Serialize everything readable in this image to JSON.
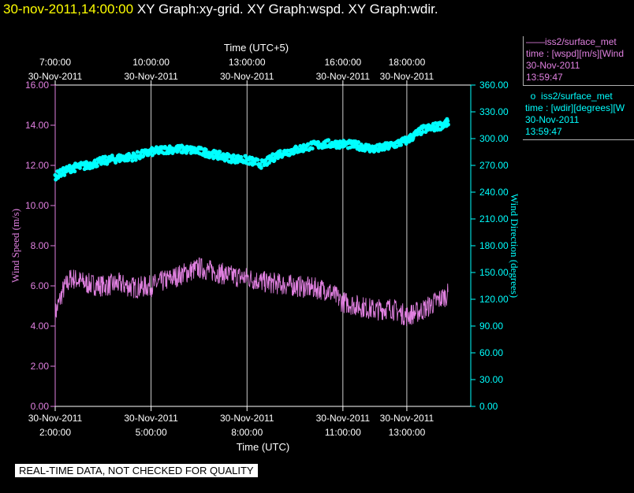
{
  "header": {
    "timestamp": "30-nov-2011,14:00:00",
    "graphs": "XY Graph:xy-grid.  XY Graph:wspd.  XY Graph:wdir."
  },
  "legend": {
    "wspd": {
      "name": "iss2/surface_met",
      "marker": "——",
      "desc": "time : [wspd][m/s][Wind",
      "date": "30-Nov-2011",
      "time": "13:59:47"
    },
    "wdir": {
      "name": "iss2/surface_met",
      "marker": "o",
      "desc": "time : [wdir][degrees][W",
      "date": "30-Nov-2011",
      "time": "13:59:47"
    }
  },
  "disclaimer": "REAL-TIME DATA, NOT CHECKED FOR QUALITY",
  "colors": {
    "wspd": "#e080e0",
    "wdir": "#00ffff",
    "grid": "#ffffff",
    "background": "#000000",
    "title_time": "#ffff00"
  },
  "chart_data": {
    "type": "line",
    "top_axis_title": "Time (UTC+5)",
    "top_ticks": [
      {
        "h": 2,
        "time": "7:00:00",
        "date": "30-Nov-2011"
      },
      {
        "h": 5,
        "time": "10:00:00",
        "date": "30-Nov-2011"
      },
      {
        "h": 8,
        "time": "13:00:00",
        "date": "30-Nov-2011"
      },
      {
        "h": 11,
        "time": "16:00:00",
        "date": "30-Nov-2011"
      },
      {
        "h": 13,
        "time": "18:00:00",
        "date": "30-Nov-2011"
      }
    ],
    "xlabel": "Time (UTC)",
    "x_ticks": [
      {
        "h": 2,
        "date": "30-Nov-2011",
        "time": "2:00:00"
      },
      {
        "h": 5,
        "date": "30-Nov-2011",
        "time": "5:00:00"
      },
      {
        "h": 8,
        "date": "30-Nov-2011",
        "time": "8:00:00"
      },
      {
        "h": 11,
        "date": "30-Nov-2011",
        "time": "11:00:00"
      },
      {
        "h": 13,
        "date": "30-Nov-2011",
        "time": "13:00:00"
      }
    ],
    "xlim_hours_utc": [
      2.0,
      15.0
    ],
    "grid_x_hours": [
      5,
      8,
      11,
      13
    ],
    "ylabel_left": "Wind Speed (m/s)",
    "ylim_left": [
      0,
      16
    ],
    "yticks_left": [
      "0.00",
      "2.00",
      "4.00",
      "6.00",
      "8.00",
      "10.00",
      "12.00",
      "14.00",
      "16.00"
    ],
    "ylabel_right": "Wind Direction (degrees)",
    "ylim_right": [
      0,
      360
    ],
    "yticks_right": [
      "0.00",
      "30.00",
      "60.00",
      "90.00",
      "120.00",
      "150.00",
      "180.00",
      "210.00",
      "240.00",
      "270.00",
      "300.00",
      "330.00",
      "360.00"
    ],
    "series": [
      {
        "name": "iss2/surface_met",
        "axis": "left",
        "style": "line",
        "x_hours_utc": [
          2.0,
          2.25,
          2.5,
          3.0,
          3.5,
          4.0,
          4.5,
          5.0,
          5.5,
          6.0,
          6.5,
          7.0,
          7.5,
          8.0,
          8.5,
          9.0,
          9.5,
          10.0,
          10.5,
          11.0,
          11.5,
          12.0,
          12.5,
          13.0,
          13.5,
          14.0,
          14.3
        ],
        "values": [
          4.6,
          5.8,
          6.4,
          6.1,
          6.0,
          6.1,
          5.9,
          6.0,
          6.3,
          6.6,
          6.9,
          6.7,
          6.5,
          6.4,
          6.2,
          6.1,
          6.0,
          5.9,
          5.8,
          5.2,
          5.0,
          4.8,
          4.9,
          4.5,
          4.8,
          5.3,
          5.6
        ]
      },
      {
        "name": "iss2/surface_met",
        "axis": "right",
        "style": "marker",
        "x_hours_utc": [
          2.0,
          2.5,
          3.0,
          3.5,
          4.0,
          4.5,
          5.0,
          5.5,
          6.0,
          6.5,
          7.0,
          7.5,
          8.0,
          8.5,
          9.0,
          9.5,
          10.0,
          10.5,
          11.0,
          11.5,
          12.0,
          12.5,
          13.0,
          13.5,
          14.0,
          14.3
        ],
        "values": [
          258,
          267,
          270,
          275,
          278,
          280,
          285,
          288,
          288,
          286,
          282,
          278,
          276,
          271,
          283,
          287,
          292,
          294,
          294,
          292,
          288,
          292,
          298,
          310,
          314,
          318
        ]
      }
    ]
  }
}
